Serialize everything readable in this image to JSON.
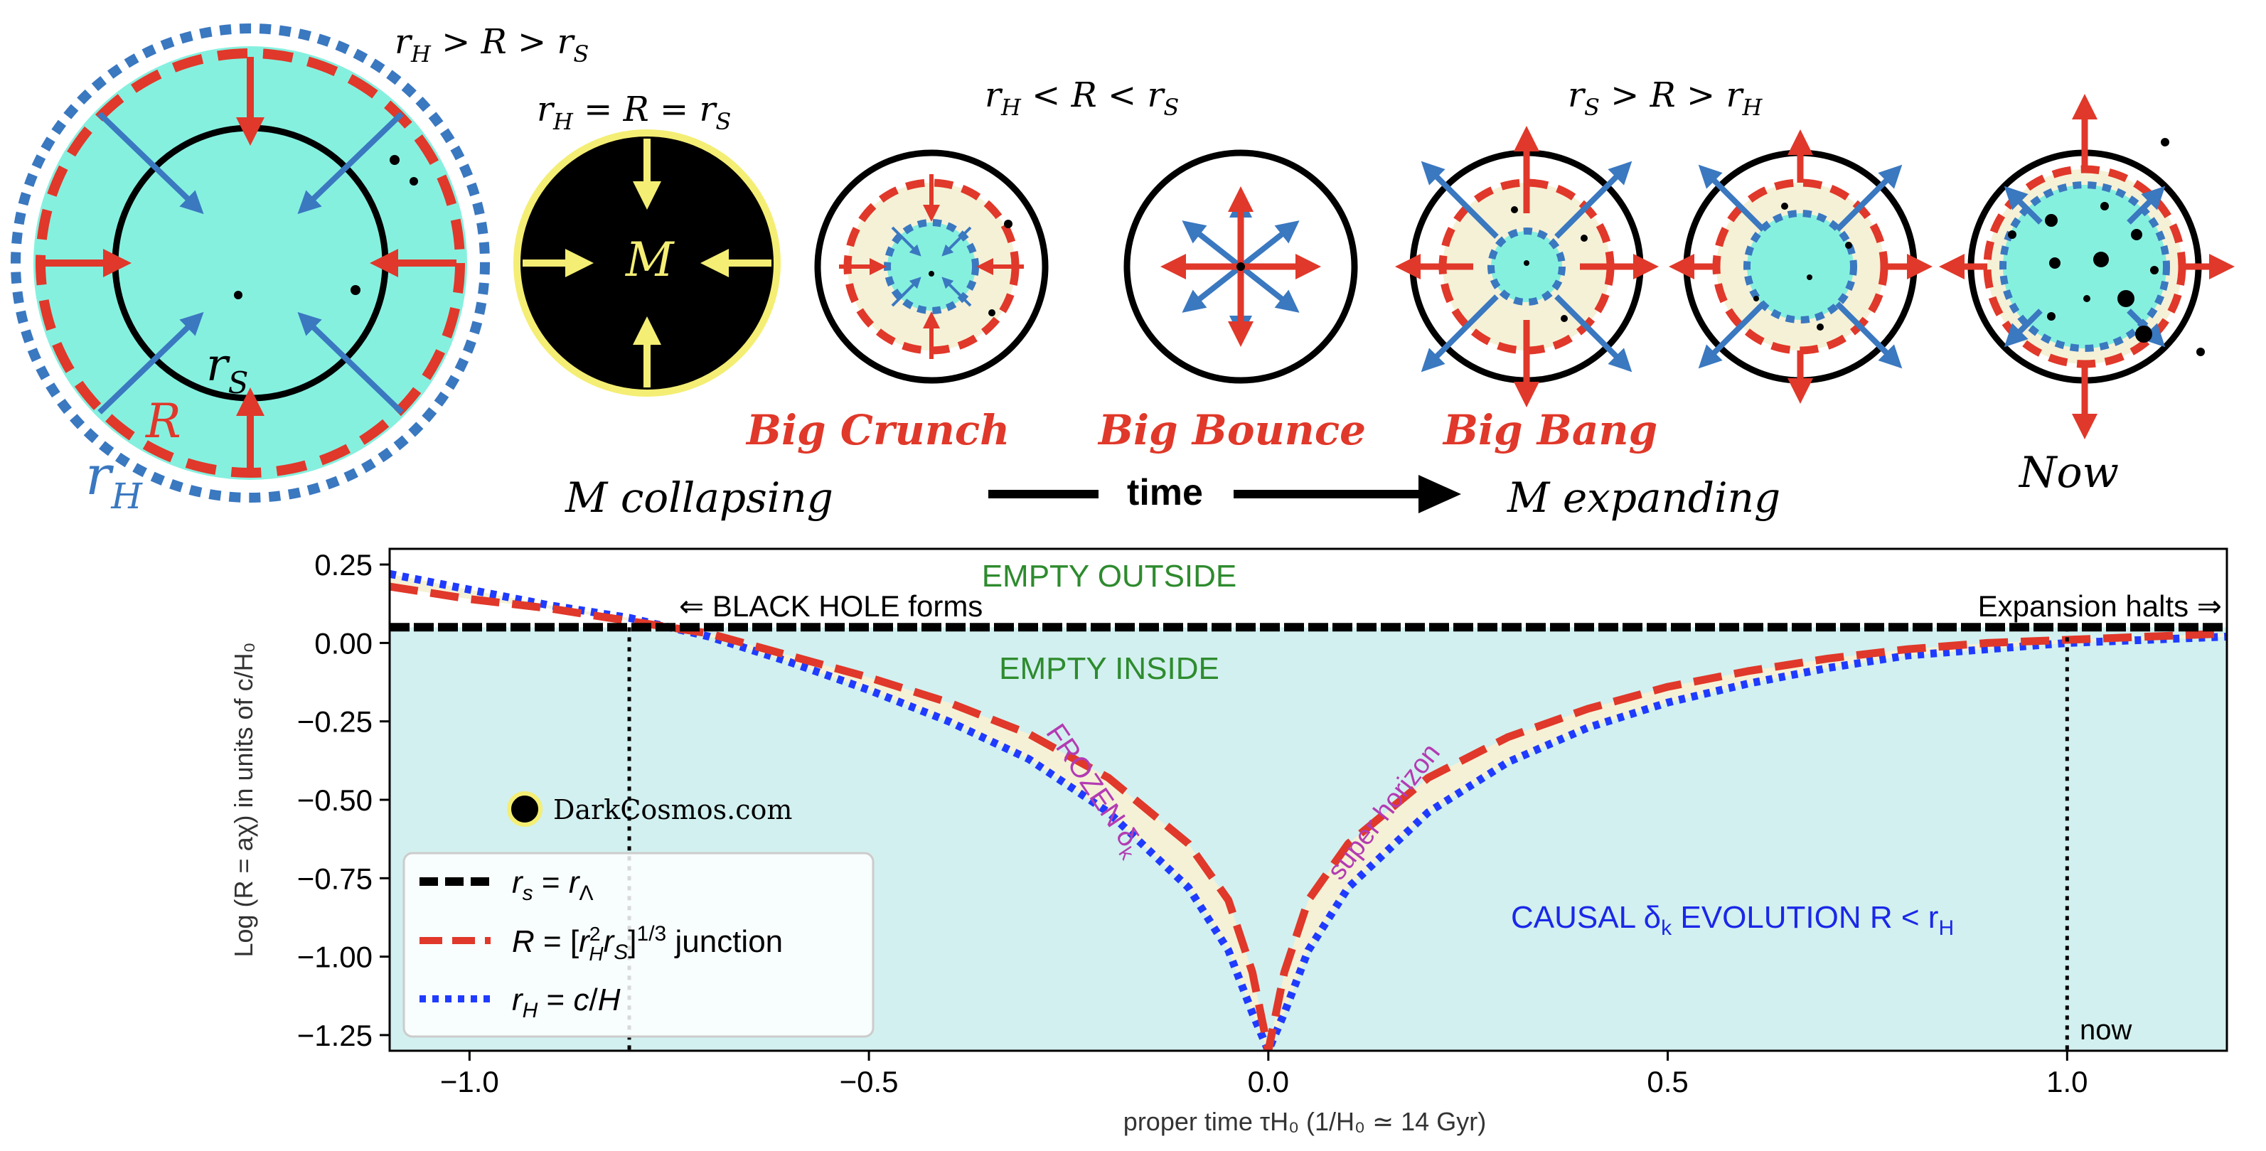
{
  "diagram": {
    "labels": {
      "cond_outer": "r_H > R > r_S",
      "cond_equal": "r_H = R = r_S",
      "cond_inner": "r_H < R < r_S",
      "cond_after": "r_S > R > r_H",
      "label_rs": "r_S",
      "label_R": "R",
      "label_rH": "r_H",
      "label_M": "M",
      "big_crunch": "Big Crunch",
      "big_bounce": "Big Bounce",
      "big_bang": "Big Bang",
      "now_top": "Now",
      "m_collapsing": "M collapsing",
      "time": "time",
      "m_expanding": "M expanding"
    },
    "colors": {
      "red": "#e0382a",
      "blue": "#3a78c0",
      "cyan": "#86f0df",
      "cream": "#f5f1d6",
      "yellow": "#f4ee74",
      "black": "#000000"
    }
  },
  "chart_data": {
    "type": "line",
    "xlabel": "proper time τH₀ (1/H₀ ≃ 14 Gyr)",
    "ylabel": "Log (R = aχ)  in units of c/H₀",
    "xlim": [
      -1.1,
      1.2
    ],
    "ylim": [
      -1.3,
      0.3
    ],
    "xticks": [
      -1.0,
      -0.5,
      0.0,
      0.5,
      1.0
    ],
    "xtick_labels": [
      "−1.0",
      "−0.5",
      "0.0",
      "0.5",
      "1.0"
    ],
    "yticks": [
      0.25,
      0.0,
      -0.25,
      -0.5,
      -0.75,
      -1.0,
      -1.25
    ],
    "ytick_labels": [
      "0.25",
      "0.00",
      "−0.25",
      "−0.50",
      "−0.75",
      "−1.00",
      "−1.25"
    ],
    "series": [
      {
        "name": "r_s = r_Λ",
        "style": "solid",
        "color": "#000000",
        "x": [
          -1.1,
          1.2
        ],
        "y": [
          0.05,
          0.05
        ]
      },
      {
        "name": "R = [r_H² r_S]^1/3 junction",
        "style": "dashed",
        "color": "#e0382a",
        "x": [
          -1.1,
          -1.0,
          -0.9,
          -0.8,
          -0.7,
          -0.6,
          -0.5,
          -0.4,
          -0.3,
          -0.2,
          -0.1,
          -0.05,
          -0.02,
          0.0,
          0.02,
          0.05,
          0.1,
          0.2,
          0.3,
          0.4,
          0.5,
          0.6,
          0.7,
          0.8,
          0.9,
          1.0,
          1.1,
          1.2
        ],
        "y": [
          0.18,
          0.14,
          0.11,
          0.07,
          0.03,
          -0.04,
          -0.11,
          -0.19,
          -0.29,
          -0.43,
          -0.64,
          -0.82,
          -1.05,
          -1.3,
          -1.05,
          -0.82,
          -0.64,
          -0.43,
          -0.3,
          -0.21,
          -0.14,
          -0.09,
          -0.05,
          -0.02,
          0.0,
          0.01,
          0.02,
          0.03
        ]
      },
      {
        "name": "r_H = c/H",
        "style": "dotted",
        "color": "#1f3bff",
        "x": [
          -1.1,
          -1.0,
          -0.9,
          -0.8,
          -0.7,
          -0.6,
          -0.5,
          -0.4,
          -0.3,
          -0.2,
          -0.1,
          -0.05,
          -0.02,
          0.0,
          0.02,
          0.05,
          0.1,
          0.2,
          0.3,
          0.4,
          0.5,
          0.6,
          0.7,
          0.8,
          0.9,
          1.0,
          1.1,
          1.2
        ],
        "y": [
          0.22,
          0.17,
          0.12,
          0.08,
          0.02,
          -0.06,
          -0.15,
          -0.25,
          -0.37,
          -0.54,
          -0.78,
          -0.98,
          -1.18,
          -1.3,
          -1.18,
          -0.98,
          -0.78,
          -0.54,
          -0.38,
          -0.27,
          -0.19,
          -0.13,
          -0.08,
          -0.04,
          -0.02,
          0.0,
          0.01,
          0.02
        ]
      }
    ],
    "vlines": [
      {
        "x": -0.8,
        "label": ""
      },
      {
        "x": 1.0,
        "label": "now"
      }
    ],
    "legend": {
      "placement": "lower-left",
      "entries": [
        "r_s = r_Λ",
        "R = [r_H² r_S]^1/3 junction",
        "r_H = c/H"
      ]
    },
    "annotations": {
      "empty_outside": "EMPTY OUTSIDE",
      "empty_inside": "EMPTY INSIDE",
      "black_hole_forms": "⇐ BLACK HOLE forms",
      "expansion_halts": "Expansion halts ⇒",
      "frozen": "FROZEN δ",
      "frozen_sub": "k",
      "super_horizon": "super horizon",
      "causal": "CAUSAL δ",
      "causal_sub": "k",
      "causal_tail": " EVOLUTION R < r",
      "causal_tail_sub": "H",
      "now": "now",
      "watermark": "DarkCosmos.com"
    },
    "colors": {
      "inside_fill": "#d2f0ef",
      "band_fill": "#f5f1d6",
      "green_text": "#2e8b2e",
      "magenta_text": "#b33bb3",
      "blue_text": "#1a28e8"
    }
  }
}
